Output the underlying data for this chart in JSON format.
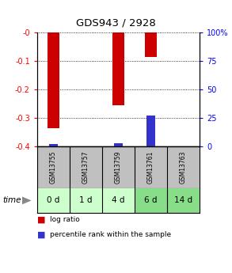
{
  "title": "GDS943 / 2928",
  "samples": [
    "GSM13755",
    "GSM13757",
    "GSM13759",
    "GSM13761",
    "GSM13763"
  ],
  "time_labels": [
    "0 d",
    "1 d",
    "4 d",
    "6 d",
    "14 d"
  ],
  "log_ratio": [
    -0.335,
    0.0,
    -0.255,
    -0.085,
    0.0
  ],
  "percentile_rank_scaled": [
    -0.392,
    0.0,
    -0.388,
    -0.292,
    0.0
  ],
  "ylim_left": [
    -0.4,
    0.0
  ],
  "ylim_right": [
    0.0,
    100.0
  ],
  "yticks_left": [
    -0.4,
    -0.3,
    -0.2,
    -0.1,
    0.0
  ],
  "ytick_labels_left": [
    "-0.4",
    "-0.3",
    "-0.2",
    "-0.1",
    "-0"
  ],
  "yticks_right": [
    0,
    25,
    50,
    75,
    100
  ],
  "ytick_labels_right": [
    "0",
    "25",
    "50",
    "75",
    "100%"
  ],
  "bar_width": 0.35,
  "blue_bar_width": 0.25,
  "log_ratio_color": "#cc0000",
  "percentile_color": "#3333cc",
  "sample_bg_color": "#c0c0c0",
  "time_bg_colors": [
    "#ccffcc",
    "#ccffcc",
    "#ccffcc",
    "#88dd88",
    "#88dd88"
  ],
  "legend_log_ratio": "log ratio",
  "legend_percentile": "percentile rank within the sample"
}
